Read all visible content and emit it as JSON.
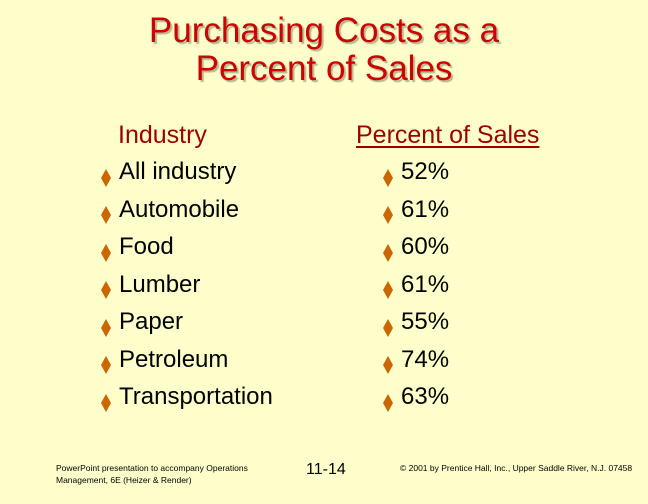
{
  "slide": {
    "title_line1": "Purchasing Costs as a",
    "title_line2": "Percent of Sales",
    "industry_header": "Industry",
    "percent_header": "Percent of Sales",
    "bullet_icon": "diamond-bullet-icon",
    "bullet_color": "#cc6600",
    "industries": [
      "All industry",
      "Automobile",
      "Food",
      "Lumber",
      "Paper",
      "Petroleum",
      "Transportation"
    ],
    "percents": [
      "52%",
      "61%",
      "60%",
      "61%",
      "55%",
      "74%",
      "63%"
    ]
  },
  "footer": {
    "left": "PowerPoint presentation to accompany Operations Management, 6E (Heizer & Render)",
    "page": "11-14",
    "right": "© 2001 by Prentice Hall, Inc., Upper Saddle River, N.J. 07458"
  }
}
